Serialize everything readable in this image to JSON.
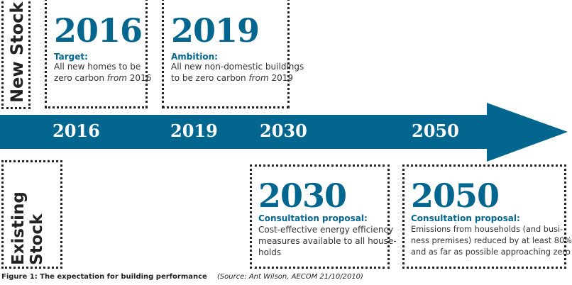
{
  "colors": {
    "accent": "#02668f",
    "arrow": "#02668f"
  },
  "new_stock": {
    "label": "New Stock"
  },
  "existing_stock": {
    "label_line1": "Existing",
    "label_line2": "Stock"
  },
  "timeline": {
    "years": [
      "2016",
      "2019",
      "2030",
      "2050"
    ]
  },
  "cards": [
    {
      "year": "2016",
      "heading": "Target:",
      "lines": [
        "All new homes to be"
      ],
      "line2_pre": "zero carbon ",
      "line2_em": "from",
      "line2_post": " 2016"
    },
    {
      "year": "2019",
      "heading": "Ambition:",
      "lines": [
        "All new non-domestic buildings"
      ],
      "line2_pre": "to be zero carbon ",
      "line2_em": "from",
      "line2_post": " 2019"
    },
    {
      "year": "2030",
      "heading": "Consultation proposal:",
      "lines": [
        "Cost-effective energy efficiency",
        "measures available to all house-",
        "holds"
      ]
    },
    {
      "year": "2050",
      "heading": "Consultation proposal:",
      "lines": [
        "Emissions from households (and busi-",
        "ness premises) reduced by at least 80%",
        "and as far as possible approaching zero"
      ]
    }
  ],
  "caption": {
    "title": "Figure 1: The expectation for building performance",
    "source": "(Source: Ant Wilson, AECOM 21/10/2010)"
  }
}
